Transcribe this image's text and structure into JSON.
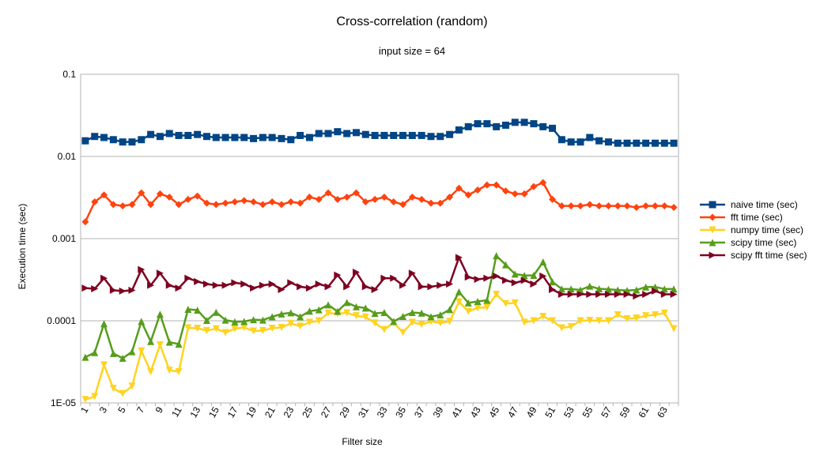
{
  "chart_data": {
    "type": "line",
    "title": "Cross-correlation (random)",
    "subtitle": "input size = 64",
    "xlabel": "Filter size",
    "ylabel": "Execution time (sec)",
    "y_scale": "log",
    "ylim": [
      1e-05,
      0.1
    ],
    "ytick_labels": [
      "1E-05",
      "0.0001",
      "0.001",
      "0.01",
      "0.1"
    ],
    "x": [
      1,
      2,
      3,
      4,
      5,
      6,
      7,
      8,
      9,
      10,
      11,
      12,
      13,
      14,
      15,
      16,
      17,
      18,
      19,
      20,
      21,
      22,
      23,
      24,
      25,
      26,
      27,
      28,
      29,
      30,
      31,
      32,
      33,
      34,
      35,
      36,
      37,
      38,
      39,
      40,
      41,
      42,
      43,
      44,
      45,
      46,
      47,
      48,
      49,
      50,
      51,
      52,
      53,
      54,
      55,
      56,
      57,
      58,
      59,
      60,
      61,
      62,
      63,
      64
    ],
    "xtick_labels": [
      "1",
      "3",
      "5",
      "7",
      "9",
      "11",
      "13",
      "15",
      "17",
      "19",
      "21",
      "23",
      "25",
      "27",
      "29",
      "31",
      "33",
      "35",
      "37",
      "39",
      "41",
      "43",
      "45",
      "47",
      "49",
      "51",
      "53",
      "55",
      "57",
      "59",
      "61",
      "63"
    ],
    "grid": "horizontal",
    "legend_position": "right",
    "series": [
      {
        "name": "naive time (sec)",
        "color": "#004586",
        "marker": "square",
        "values": [
          0.0155,
          0.0175,
          0.017,
          0.016,
          0.015,
          0.015,
          0.016,
          0.0185,
          0.0175,
          0.019,
          0.018,
          0.018,
          0.0185,
          0.0175,
          0.017,
          0.017,
          0.017,
          0.017,
          0.0165,
          0.017,
          0.017,
          0.0165,
          0.016,
          0.018,
          0.017,
          0.019,
          0.019,
          0.02,
          0.019,
          0.0195,
          0.0185,
          0.018,
          0.018,
          0.018,
          0.018,
          0.018,
          0.018,
          0.0175,
          0.0175,
          0.0185,
          0.021,
          0.023,
          0.025,
          0.025,
          0.023,
          0.024,
          0.026,
          0.026,
          0.025,
          0.023,
          0.022,
          0.016,
          0.015,
          0.015,
          0.017,
          0.0155,
          0.015,
          0.0145,
          0.0145,
          0.0145,
          0.0145,
          0.0145,
          0.0145,
          0.0145
        ]
      },
      {
        "name": "fft time (sec)",
        "color": "#ff420e",
        "marker": "diamond",
        "values": [
          0.0016,
          0.0028,
          0.0034,
          0.0026,
          0.0025,
          0.0026,
          0.0036,
          0.0026,
          0.0035,
          0.0032,
          0.0026,
          0.003,
          0.0033,
          0.0027,
          0.0026,
          0.0027,
          0.0028,
          0.0029,
          0.0028,
          0.0026,
          0.0028,
          0.0026,
          0.0028,
          0.0027,
          0.0032,
          0.003,
          0.0036,
          0.003,
          0.0032,
          0.0036,
          0.0028,
          0.003,
          0.0032,
          0.0028,
          0.0026,
          0.0032,
          0.003,
          0.0027,
          0.0027,
          0.0032,
          0.0041,
          0.0034,
          0.0039,
          0.0045,
          0.0045,
          0.0038,
          0.0035,
          0.0035,
          0.0043,
          0.0048,
          0.003,
          0.0025,
          0.0025,
          0.0025,
          0.0026,
          0.0025,
          0.0025,
          0.0025,
          0.0025,
          0.0024,
          0.0025,
          0.0025,
          0.0025,
          0.0024
        ]
      },
      {
        "name": "numpy time (sec)",
        "color": "#ffd320",
        "marker": "triangle-down",
        "values": [
          1.1e-05,
          1.2e-05,
          2.9e-05,
          1.5e-05,
          1.3e-05,
          1.6e-05,
          4.3e-05,
          2.4e-05,
          5.1e-05,
          2.5e-05,
          2.4e-05,
          8.2e-05,
          8.1e-05,
          7.6e-05,
          8e-05,
          7.2e-05,
          8e-05,
          8.3e-05,
          7.5e-05,
          7.6e-05,
          8.1e-05,
          8.3e-05,
          9.3e-05,
          8.6e-05,
          9.6e-05,
          0.0001,
          0.000124,
          0.000122,
          0.000125,
          0.000115,
          0.000111,
          9.4e-05,
          7.8e-05,
          9.5e-05,
          7.2e-05,
          9.6e-05,
          9e-05,
          9.8e-05,
          9.4e-05,
          9.8e-05,
          0.00017,
          0.00013,
          0.000143,
          0.000146,
          0.00021,
          0.000162,
          0.000165,
          9.6e-05,
          0.0001,
          0.000113,
          0.0001,
          8.2e-05,
          8.5e-05,
          0.0001,
          0.000101,
          0.0001,
          0.0001,
          0.000118,
          0.000106,
          0.000108,
          0.000115,
          0.000118,
          0.000124,
          8e-05
        ]
      },
      {
        "name": "scipy time (sec)",
        "color": "#579d1c",
        "marker": "triangle-up",
        "values": [
          3.6e-05,
          4.1e-05,
          9.2e-05,
          4e-05,
          3.5e-05,
          4.2e-05,
          9.8e-05,
          5.6e-05,
          0.00012,
          5.5e-05,
          5.2e-05,
          0.000138,
          0.000135,
          0.000101,
          0.000127,
          0.000102,
          9.7e-05,
          9.8e-05,
          0.000103,
          0.000102,
          0.000112,
          0.000121,
          0.000125,
          0.000112,
          0.000131,
          0.000136,
          0.000156,
          0.00013,
          0.000167,
          0.000148,
          0.000143,
          0.000123,
          0.000126,
          9.8e-05,
          0.000113,
          0.000126,
          0.000124,
          0.000112,
          0.000118,
          0.000137,
          0.000225,
          0.000165,
          0.000172,
          0.000178,
          0.00062,
          0.00048,
          0.00037,
          0.000356,
          0.000357,
          0.00052,
          0.000298,
          0.000244,
          0.000244,
          0.000237,
          0.000264,
          0.000245,
          0.000242,
          0.000237,
          0.000234,
          0.000237,
          0.000258,
          0.000258,
          0.000244,
          0.000244
        ]
      },
      {
        "name": "scipy fft time (sec)",
        "color": "#7e0021",
        "marker": "triangle-right",
        "values": [
          0.00025,
          0.000245,
          0.00033,
          0.000235,
          0.00023,
          0.000235,
          0.00042,
          0.00027,
          0.00038,
          0.00027,
          0.00025,
          0.00033,
          0.0003,
          0.00028,
          0.00027,
          0.00027,
          0.00029,
          0.00028,
          0.00025,
          0.00027,
          0.00028,
          0.00024,
          0.00029,
          0.00026,
          0.00025,
          0.00028,
          0.00026,
          0.00036,
          0.00026,
          0.00039,
          0.00026,
          0.00024,
          0.00033,
          0.00033,
          0.00027,
          0.00038,
          0.00026,
          0.00026,
          0.00027,
          0.00028,
          0.00059,
          0.00034,
          0.00032,
          0.00033,
          0.00035,
          0.00031,
          0.00029,
          0.00031,
          0.00028,
          0.00035,
          0.00024,
          0.00021,
          0.00021,
          0.00021,
          0.00021,
          0.00021,
          0.00021,
          0.00021,
          0.00021,
          0.0002,
          0.00021,
          0.00023,
          0.00021,
          0.00021
        ]
      }
    ]
  }
}
